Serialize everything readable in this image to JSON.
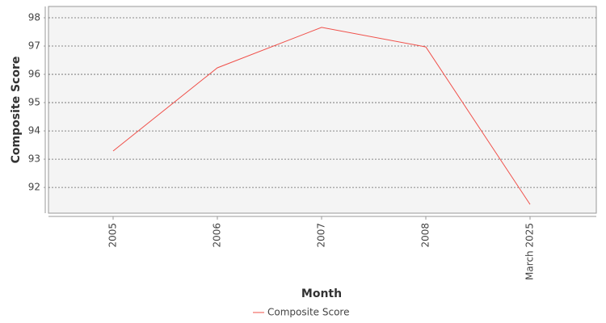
{
  "chart_data": {
    "type": "line",
    "x_label": "Month",
    "y_label": "Composite Score",
    "categories": [
      "2005",
      "2006",
      "2007",
      "2008",
      "March 2025"
    ],
    "series": [
      {
        "name": "Composite Score",
        "color": "#f0504a",
        "values": [
          93.29,
          96.23,
          97.66,
          96.97,
          91.4
        ]
      }
    ],
    "ylim": [
      91.09,
      98.4
    ],
    "yticks": [
      92,
      93,
      94,
      95,
      96,
      97,
      98
    ],
    "grid": true,
    "legend": "bottom"
  }
}
